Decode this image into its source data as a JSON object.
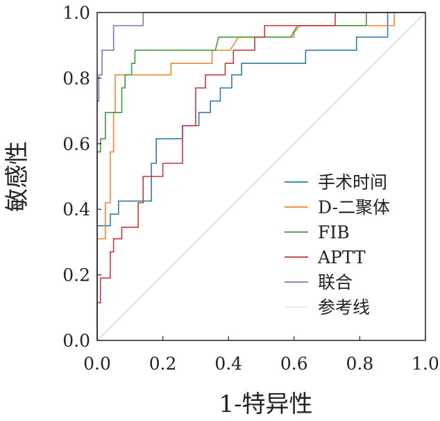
{
  "chart_data": {
    "type": "line",
    "title": "",
    "xlabel": "1-特异性",
    "ylabel": "敏感性",
    "xlim": [
      0,
      1
    ],
    "ylim": [
      0,
      1
    ],
    "xticks": [
      "0.0",
      "0.2",
      "0.4",
      "0.6",
      "0.8",
      "1.0"
    ],
    "yticks": [
      "0.0",
      "0.2",
      "0.4",
      "0.6",
      "0.8",
      "1.0"
    ],
    "legend_position": "bottom-right",
    "grid": false,
    "series": [
      {
        "name": "手术时间",
        "color": "#2f7aaa",
        "points": [
          [
            0,
            0
          ],
          [
            0,
            0.35
          ],
          [
            0.04,
            0.35
          ],
          [
            0.04,
            0.385
          ],
          [
            0.065,
            0.385
          ],
          [
            0.065,
            0.425
          ],
          [
            0.165,
            0.425
          ],
          [
            0.165,
            0.54
          ],
          [
            0.18,
            0.54
          ],
          [
            0.18,
            0.615
          ],
          [
            0.26,
            0.615
          ],
          [
            0.26,
            0.655
          ],
          [
            0.31,
            0.655
          ],
          [
            0.31,
            0.695
          ],
          [
            0.345,
            0.695
          ],
          [
            0.345,
            0.73
          ],
          [
            0.375,
            0.73
          ],
          [
            0.375,
            0.77
          ],
          [
            0.41,
            0.77
          ],
          [
            0.41,
            0.81
          ],
          [
            0.44,
            0.81
          ],
          [
            0.44,
            0.845
          ],
          [
            0.505,
            0.845
          ],
          [
            0.505,
            0.845
          ],
          [
            0.635,
            0.845
          ],
          [
            0.635,
            0.885
          ],
          [
            0.79,
            0.885
          ],
          [
            0.79,
            0.925
          ],
          [
            0.885,
            0.925
          ],
          [
            0.885,
            1
          ],
          [
            1,
            1
          ]
        ]
      },
      {
        "name": "D-二聚体",
        "color": "#f0862e",
        "points": [
          [
            0,
            0
          ],
          [
            0,
            0.31
          ],
          [
            0.025,
            0.31
          ],
          [
            0.025,
            0.42
          ],
          [
            0.04,
            0.42
          ],
          [
            0.04,
            0.575
          ],
          [
            0.05,
            0.575
          ],
          [
            0.05,
            0.695
          ],
          [
            0.055,
            0.695
          ],
          [
            0.055,
            0.81
          ],
          [
            0.225,
            0.81
          ],
          [
            0.225,
            0.845
          ],
          [
            0.35,
            0.845
          ],
          [
            0.35,
            0.885
          ],
          [
            0.405,
            0.885
          ],
          [
            0.405,
            0.885
          ],
          [
            0.43,
            0.925
          ],
          [
            0.6,
            0.925
          ],
          [
            0.6,
            0.94
          ],
          [
            0.62,
            0.96
          ],
          [
            0.75,
            0.96
          ],
          [
            0.75,
            0.96
          ],
          [
            0.89,
            0.96
          ],
          [
            0.89,
            0.96
          ],
          [
            0.905,
            0.96
          ],
          [
            0.905,
            1
          ],
          [
            1,
            1
          ]
        ]
      },
      {
        "name": "FIB",
        "color": "#3a9a3e",
        "points": [
          [
            0,
            0
          ],
          [
            0,
            0.575
          ],
          [
            0.01,
            0.575
          ],
          [
            0.01,
            0.615
          ],
          [
            0.025,
            0.615
          ],
          [
            0.025,
            0.695
          ],
          [
            0.075,
            0.695
          ],
          [
            0.075,
            0.77
          ],
          [
            0.085,
            0.77
          ],
          [
            0.085,
            0.81
          ],
          [
            0.105,
            0.81
          ],
          [
            0.105,
            0.845
          ],
          [
            0.115,
            0.845
          ],
          [
            0.115,
            0.885
          ],
          [
            0.36,
            0.885
          ],
          [
            0.37,
            0.925
          ],
          [
            0.59,
            0.925
          ],
          [
            0.59,
            0.925
          ],
          [
            0.61,
            0.96
          ],
          [
            0.82,
            0.96
          ],
          [
            0.82,
            1
          ],
          [
            1,
            1
          ]
        ]
      },
      {
        "name": "APTT",
        "color": "#c4383b",
        "points": [
          [
            0,
            0
          ],
          [
            0,
            0.115
          ],
          [
            0.01,
            0.115
          ],
          [
            0.01,
            0.19
          ],
          [
            0.04,
            0.19
          ],
          [
            0.04,
            0.27
          ],
          [
            0.05,
            0.27
          ],
          [
            0.05,
            0.31
          ],
          [
            0.075,
            0.31
          ],
          [
            0.075,
            0.345
          ],
          [
            0.125,
            0.345
          ],
          [
            0.125,
            0.42
          ],
          [
            0.14,
            0.42
          ],
          [
            0.14,
            0.5
          ],
          [
            0.2,
            0.5
          ],
          [
            0.2,
            0.54
          ],
          [
            0.26,
            0.54
          ],
          [
            0.26,
            0.655
          ],
          [
            0.3,
            0.655
          ],
          [
            0.3,
            0.77
          ],
          [
            0.33,
            0.77
          ],
          [
            0.33,
            0.81
          ],
          [
            0.39,
            0.81
          ],
          [
            0.39,
            0.845
          ],
          [
            0.415,
            0.845
          ],
          [
            0.415,
            0.885
          ],
          [
            0.48,
            0.885
          ],
          [
            0.48,
            0.925
          ],
          [
            0.51,
            0.925
          ],
          [
            0.51,
            0.96
          ],
          [
            0.725,
            0.96
          ],
          [
            0.725,
            1
          ],
          [
            1,
            1
          ]
        ]
      },
      {
        "name": "联合",
        "color": "#8a6fbf",
        "points": [
          [
            0,
            0
          ],
          [
            0,
            0.73
          ],
          [
            0.005,
            0.73
          ],
          [
            0.005,
            0.81
          ],
          [
            0.015,
            0.81
          ],
          [
            0.015,
            0.885
          ],
          [
            0.05,
            0.885
          ],
          [
            0.05,
            0.96
          ],
          [
            0.14,
            0.96
          ],
          [
            0.14,
            1
          ],
          [
            1,
            1
          ]
        ]
      },
      {
        "name": "参考线",
        "color": "#c8c8c8",
        "reference": true,
        "points": [
          [
            0,
            0
          ],
          [
            1,
            1
          ]
        ]
      }
    ]
  }
}
